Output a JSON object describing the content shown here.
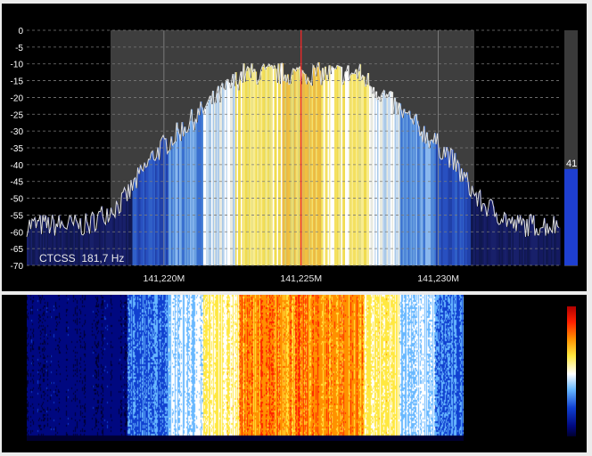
{
  "spectrum": {
    "db_labels": [
      "0",
      "-5",
      "-10",
      "-15",
      "-20",
      "-25",
      "-30",
      "-35",
      "-40",
      "-45",
      "-50",
      "-55",
      "-60",
      "-65",
      "-70"
    ],
    "freq_labels": [
      "141,220M",
      "141,225M",
      "141,230M"
    ],
    "freq_values": [
      141.22,
      141.225,
      141.23
    ],
    "center_freq": 141.225,
    "freq_range": [
      141.215,
      141.2344
    ],
    "db_range": [
      -70,
      0
    ],
    "ctcss_label": "CTCSS",
    "ctcss_value": "181,7 Hz",
    "level_value": "41",
    "level_fraction": 0.41,
    "colors": {
      "background": "#000000",
      "grid": "#7a7a7a",
      "passband": "#3e3e3e",
      "trace": "#dcdcdc",
      "center_line": "#ff2020",
      "level_meter": "#1e3fd0"
    }
  },
  "waterfall": {
    "palette": [
      "#000030",
      "#000880",
      "#1040d0",
      "#68b8ff",
      "#ffffff",
      "#ffe840",
      "#ff9000",
      "#ff2000",
      "#b00000"
    ]
  }
}
